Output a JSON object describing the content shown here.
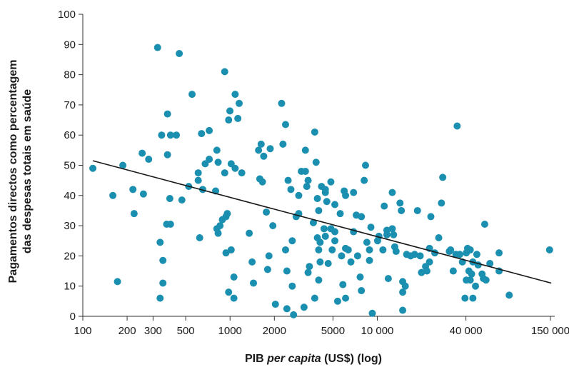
{
  "chart_data": {
    "type": "scatter",
    "title": "",
    "xlabel_parts": [
      {
        "text": "PIB ",
        "italic": false
      },
      {
        "text": "per capita",
        "italic": true
      },
      {
        "text": " (US$) (log)",
        "italic": false
      }
    ],
    "ylabel_line1": "Pagamentos directos como percentagem",
    "ylabel_line2": "das despesas totais em saúde",
    "x_scale": "log",
    "xlim": [
      100,
      150000
    ],
    "ylim": [
      0,
      100
    ],
    "x_ticks": [
      {
        "value": 100,
        "label": "100"
      },
      {
        "value": 200,
        "label": "200"
      },
      {
        "value": 300,
        "label": "300"
      },
      {
        "value": 500,
        "label": "500"
      },
      {
        "value": 1000,
        "label": "1000"
      },
      {
        "value": 2000,
        "label": "2000"
      },
      {
        "value": 5000,
        "label": "5000"
      },
      {
        "value": 10000,
        "label": "10 000"
      },
      {
        "value": 40000,
        "label": "40 000"
      },
      {
        "value": 150000,
        "label": "150 000"
      }
    ],
    "y_ticks": [
      {
        "value": 0,
        "label": "0"
      },
      {
        "value": 10,
        "label": "10"
      },
      {
        "value": 20,
        "label": "20"
      },
      {
        "value": 30,
        "label": "30"
      },
      {
        "value": 40,
        "label": "40"
      },
      {
        "value": 50,
        "label": "50"
      },
      {
        "value": 60,
        "label": "60"
      },
      {
        "value": 70,
        "label": "70"
      },
      {
        "value": 80,
        "label": "80"
      },
      {
        "value": 90,
        "label": "90"
      },
      {
        "value": 100,
        "label": "100"
      }
    ],
    "grid": false,
    "point_color": "#1a8fb0",
    "trend_color": "#1a1a1a",
    "trend_line": [
      [
        117,
        51.5
      ],
      [
        152000,
        11
      ]
    ],
    "points": [
      [
        117,
        49
      ],
      [
        160,
        40
      ],
      [
        172,
        11.5
      ],
      [
        187,
        50
      ],
      [
        219,
        42
      ],
      [
        223,
        34
      ],
      [
        253,
        54
      ],
      [
        258,
        40.5
      ],
      [
        280,
        52
      ],
      [
        322,
        89
      ],
      [
        335,
        6
      ],
      [
        335,
        24.5
      ],
      [
        343,
        60
      ],
      [
        350,
        11
      ],
      [
        350,
        18.5
      ],
      [
        371,
        30.5
      ],
      [
        376,
        53.5
      ],
      [
        376,
        67
      ],
      [
        390,
        39
      ],
      [
        394,
        60
      ],
      [
        394,
        30.5
      ],
      [
        432,
        60
      ],
      [
        452,
        87
      ],
      [
        471,
        38.5
      ],
      [
        524,
        43
      ],
      [
        552,
        73.5
      ],
      [
        608,
        47.5
      ],
      [
        608,
        45
      ],
      [
        622,
        26
      ],
      [
        640,
        60.5
      ],
      [
        652,
        42
      ],
      [
        678,
        50.5
      ],
      [
        722,
        52
      ],
      [
        722,
        61.5
      ],
      [
        798,
        41.5
      ],
      [
        814,
        55
      ],
      [
        814,
        29
      ],
      [
        830,
        51
      ],
      [
        830,
        27.5
      ],
      [
        855,
        30
      ],
      [
        887,
        32
      ],
      [
        920,
        81
      ],
      [
        920,
        47.5
      ],
      [
        938,
        33
      ],
      [
        938,
        21
      ],
      [
        958,
        34
      ],
      [
        978,
        65
      ],
      [
        978,
        8
      ],
      [
        998,
        68
      ],
      [
        1018,
        50.5
      ],
      [
        1018,
        22
      ],
      [
        1062,
        6
      ],
      [
        1062,
        13
      ],
      [
        1083,
        73.5
      ],
      [
        1083,
        49
      ],
      [
        1130,
        65.5
      ],
      [
        1153,
        70.5
      ],
      [
        1201,
        47.5
      ],
      [
        1350,
        27.5
      ],
      [
        1412,
        18
      ],
      [
        1442,
        11
      ],
      [
        1562,
        55
      ],
      [
        1593,
        45.5
      ],
      [
        1626,
        57
      ],
      [
        1660,
        44.5
      ],
      [
        1693,
        53
      ],
      [
        1764,
        34.5
      ],
      [
        1800,
        15.5
      ],
      [
        1837,
        20
      ],
      [
        1874,
        55.5
      ],
      [
        1953,
        30
      ],
      [
        2033,
        4
      ],
      [
        2240,
        70.5
      ],
      [
        2288,
        57
      ],
      [
        2382,
        63.5
      ],
      [
        2382,
        22
      ],
      [
        2433,
        2.5
      ],
      [
        2433,
        15
      ],
      [
        2480,
        45
      ],
      [
        2590,
        42
      ],
      [
        2645,
        25
      ],
      [
        2645,
        10
      ],
      [
        2700,
        0.5
      ],
      [
        2812,
        33
      ],
      [
        2928,
        34
      ],
      [
        2928,
        40
      ],
      [
        3050,
        48
      ],
      [
        3180,
        3
      ],
      [
        3250,
        55
      ],
      [
        3250,
        48
      ],
      [
        3320,
        43
      ],
      [
        3390,
        14.5
      ],
      [
        3390,
        45
      ],
      [
        3460,
        16.5
      ],
      [
        3680,
        31
      ],
      [
        3760,
        6
      ],
      [
        3760,
        61
      ],
      [
        3840,
        51
      ],
      [
        3920,
        39
      ],
      [
        3920,
        26
      ],
      [
        4000,
        35
      ],
      [
        4000,
        12
      ],
      [
        4000,
        22
      ],
      [
        4090,
        24.5
      ],
      [
        4090,
        18
      ],
      [
        4180,
        43
      ],
      [
        4350,
        29
      ],
      [
        4440,
        26.5
      ],
      [
        4440,
        41
      ],
      [
        4440,
        42
      ],
      [
        4540,
        38
      ],
      [
        4640,
        17.5
      ],
      [
        4840,
        29
      ],
      [
        4840,
        44.5
      ],
      [
        4940,
        22
      ],
      [
        5150,
        25
      ],
      [
        5150,
        28
      ],
      [
        5150,
        37
      ],
      [
        5380,
        5
      ],
      [
        5600,
        34
      ],
      [
        5720,
        20
      ],
      [
        5840,
        10.5
      ],
      [
        5960,
        41.5
      ],
      [
        6090,
        40
      ],
      [
        6090,
        22.5
      ],
      [
        6090,
        6
      ],
      [
        6350,
        22
      ],
      [
        6620,
        18
      ],
      [
        6900,
        28
      ],
      [
        6900,
        41
      ],
      [
        7200,
        33.5
      ],
      [
        7350,
        20
      ],
      [
        7650,
        13
      ],
      [
        7800,
        8.5
      ],
      [
        7800,
        33
      ],
      [
        8150,
        45
      ],
      [
        8320,
        50
      ],
      [
        8500,
        24.5
      ],
      [
        8850,
        18.5
      ],
      [
        8850,
        22
      ],
      [
        9050,
        29.5
      ],
      [
        9250,
        1
      ],
      [
        10050,
        25
      ],
      [
        10260,
        26.5
      ],
      [
        10920,
        22
      ],
      [
        11150,
        36.5
      ],
      [
        11620,
        28.5
      ],
      [
        11620,
        27
      ],
      [
        11880,
        12.5
      ],
      [
        12640,
        41
      ],
      [
        12640,
        29
      ],
      [
        12900,
        27
      ],
      [
        13140,
        23
      ],
      [
        13420,
        21.5
      ],
      [
        14270,
        37.5
      ],
      [
        14570,
        35
      ],
      [
        14880,
        2
      ],
      [
        14880,
        11.5
      ],
      [
        14880,
        8
      ],
      [
        15500,
        10
      ],
      [
        15830,
        20.5
      ],
      [
        16850,
        20
      ],
      [
        17930,
        20.5
      ],
      [
        18750,
        35
      ],
      [
        19570,
        20
      ],
      [
        19970,
        14.5
      ],
      [
        21270,
        16.5
      ],
      [
        21720,
        15
      ],
      [
        22630,
        22.5
      ],
      [
        22630,
        18
      ],
      [
        23110,
        33
      ],
      [
        24580,
        21
      ],
      [
        26150,
        26
      ],
      [
        27270,
        37.5
      ],
      [
        27830,
        46
      ],
      [
        30860,
        21.5
      ],
      [
        31480,
        22
      ],
      [
        32800,
        15
      ],
      [
        34180,
        20.5
      ],
      [
        34880,
        63
      ],
      [
        36330,
        20.5
      ],
      [
        37850,
        18
      ],
      [
        39410,
        6
      ],
      [
        40230,
        12
      ],
      [
        40230,
        21
      ],
      [
        41060,
        22.5
      ],
      [
        41930,
        15
      ],
      [
        42790,
        22
      ],
      [
        42790,
        12
      ],
      [
        43710,
        14
      ],
      [
        44600,
        18
      ],
      [
        44600,
        6
      ],
      [
        46470,
        10
      ],
      [
        47440,
        20.5
      ],
      [
        48420,
        17
      ],
      [
        51480,
        14
      ],
      [
        52560,
        12.5
      ],
      [
        53670,
        30.5
      ],
      [
        54780,
        12
      ],
      [
        58200,
        17.5
      ],
      [
        67190,
        21
      ],
      [
        67190,
        15
      ],
      [
        78710,
        7
      ],
      [
        148000,
        22
      ]
    ]
  }
}
